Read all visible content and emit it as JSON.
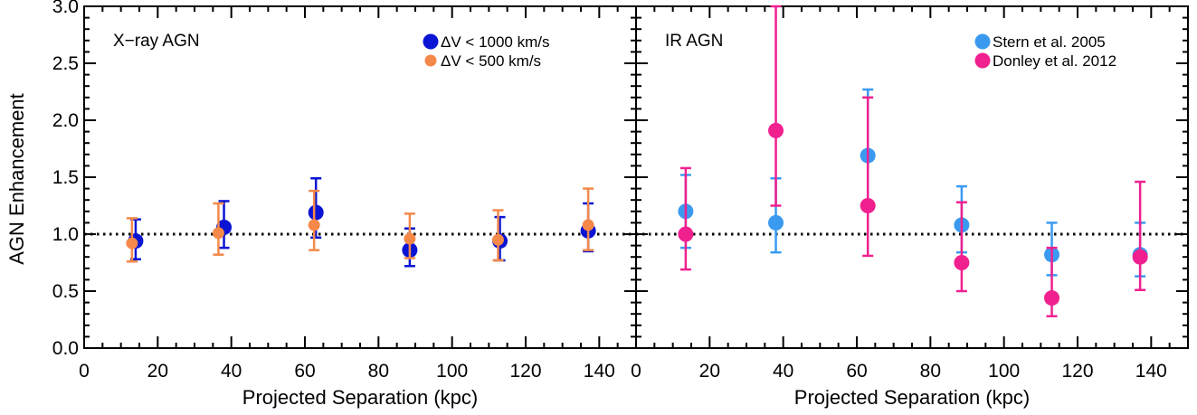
{
  "chart_data": [
    {
      "type": "scatter",
      "panel_label": "X−ray AGN",
      "xlabel": "Projected Separation (kpc)",
      "ylabel": "AGN Enhancement",
      "xlim": [
        0,
        150
      ],
      "ylim": [
        0,
        3.0
      ],
      "x_ticks": [
        0,
        20,
        40,
        60,
        80,
        100,
        120,
        140
      ],
      "x_tick_labels": [
        "0",
        "20",
        "40",
        "60",
        "80",
        "100",
        "120",
        "140"
      ],
      "y_ticks": [
        0,
        0.5,
        1.0,
        1.5,
        2.0,
        2.5,
        3.0
      ],
      "y_tick_labels": [
        "0.0",
        "0.5",
        "1.0",
        "1.5",
        "2.0",
        "2.5",
        "3.0"
      ],
      "reference_line": {
        "y": 1.0,
        "style": "dotted"
      },
      "legend_position": "top-right",
      "series": [
        {
          "name": "ΔV < 1000 km/s",
          "color": "#0a14d2",
          "marker_size": "large",
          "x": [
            14,
            38,
            63,
            88.5,
            113,
            137
          ],
          "y": [
            0.94,
            1.06,
            1.19,
            0.86,
            0.94,
            1.03
          ],
          "err_low": [
            0.78,
            0.88,
            0.97,
            0.72,
            0.77,
            0.85
          ],
          "err_high": [
            1.13,
            1.29,
            1.49,
            1.05,
            1.15,
            1.27
          ]
        },
        {
          "name": "ΔV < 500 km/s",
          "color": "#f4894a",
          "marker_size": "small",
          "x": [
            13,
            36.5,
            62.5,
            88.5,
            112.5,
            137
          ],
          "y": [
            0.92,
            1.01,
            1.08,
            0.96,
            0.95,
            1.08
          ],
          "err_low": [
            0.76,
            0.82,
            0.86,
            0.79,
            0.77,
            0.86
          ],
          "err_high": [
            1.14,
            1.27,
            1.38,
            1.18,
            1.21,
            1.4
          ]
        }
      ]
    },
    {
      "type": "scatter",
      "panel_label": "IR AGN",
      "xlabel": "Projected Separation (kpc)",
      "ylabel": "",
      "xlim": [
        0,
        150
      ],
      "ylim": [
        0,
        3.0
      ],
      "x_ticks": [
        0,
        20,
        40,
        60,
        80,
        100,
        120,
        140
      ],
      "x_tick_labels": [
        "0",
        "20",
        "40",
        "60",
        "80",
        "100",
        "120",
        "140"
      ],
      "reference_line": {
        "y": 1.0,
        "style": "dotted"
      },
      "legend_position": "top-right",
      "series": [
        {
          "name": "Stern et al. 2005",
          "color": "#3a9af0",
          "marker_size": "large",
          "x": [
            13.5,
            38,
            63,
            88.5,
            113,
            137
          ],
          "y": [
            1.2,
            1.1,
            1.69,
            1.08,
            0.82,
            0.82
          ],
          "err_low": [
            0.88,
            0.84,
            1.24,
            0.84,
            0.64,
            0.63
          ],
          "err_high": [
            1.52,
            1.49,
            2.27,
            1.42,
            1.1,
            1.1
          ]
        },
        {
          "name": "Donley et al. 2012",
          "color": "#f0208f",
          "marker_size": "large",
          "x": [
            13.5,
            38,
            63,
            88.5,
            113,
            137
          ],
          "y": [
            1.0,
            1.91,
            1.25,
            0.75,
            0.44,
            0.8
          ],
          "err_low": [
            0.69,
            1.25,
            0.81,
            0.5,
            0.28,
            0.51
          ],
          "err_high": [
            1.58,
            3.0,
            2.2,
            1.28,
            0.88,
            1.46
          ]
        }
      ]
    }
  ]
}
